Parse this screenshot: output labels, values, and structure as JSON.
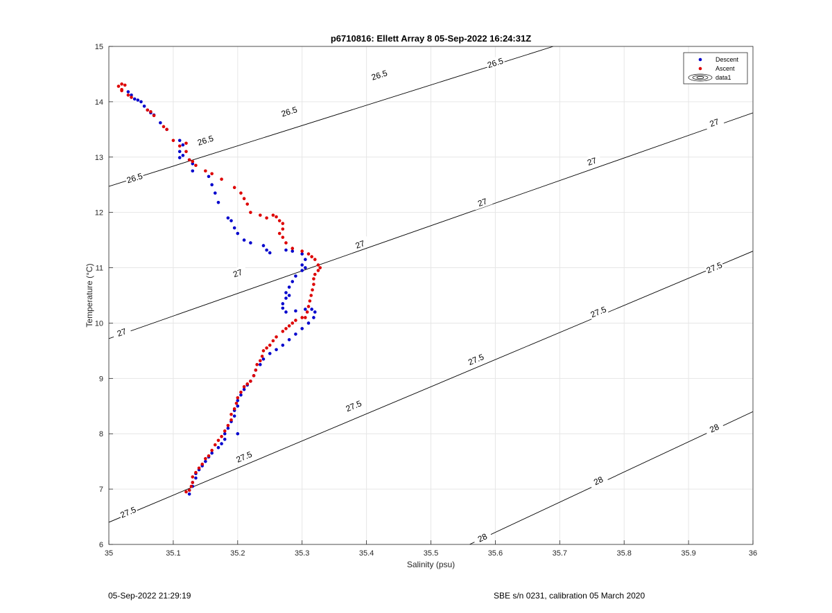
{
  "footer": {
    "left": "05-Sep-2022 21:29:19",
    "right": "SBE s/n 0231, calibration 05 March 2020"
  },
  "chart_data": {
    "type": "scatter",
    "title": "p6710816: Ellett Array 8 05-Sep-2022 16:24:31Z",
    "xlabel": "Salinity (psu)",
    "ylabel": "Temperature (°C)",
    "xlim": [
      35,
      36
    ],
    "ylim": [
      6,
      15
    ],
    "xticks": [
      "35",
      "35.1",
      "35.2",
      "35.3",
      "35.4",
      "35.5",
      "35.6",
      "35.7",
      "35.8",
      "35.9",
      "36"
    ],
    "yticks": [
      "6",
      "7",
      "8",
      "9",
      "10",
      "11",
      "12",
      "13",
      "14",
      "15"
    ],
    "grid": true,
    "legend": {
      "placement": "top-right",
      "entries": [
        {
          "name": "Descent",
          "color": "#0000cc",
          "marker": "dot"
        },
        {
          "name": "Ascent",
          "color": "#dd0000",
          "marker": "dot"
        },
        {
          "name": "data1",
          "color": "#000000",
          "marker": "contour"
        }
      ]
    },
    "contours": [
      {
        "level": "26.5",
        "line": [
          [
            35,
            12.47
          ],
          [
            35.69,
            15
          ]
        ],
        "labels": [
          [
            35.04,
            12.62
          ],
          [
            35.15,
            13.3
          ],
          [
            35.28,
            13.82
          ],
          [
            35.42,
            14.48
          ],
          [
            35.6,
            14.7
          ]
        ]
      },
      {
        "level": "27",
        "line": [
          [
            35,
            9.72
          ],
          [
            36,
            13.8
          ]
        ],
        "labels": [
          [
            35.02,
            9.83
          ],
          [
            35.2,
            10.9
          ],
          [
            35.39,
            11.42
          ],
          [
            35.58,
            12.18
          ],
          [
            35.75,
            12.92
          ],
          [
            35.94,
            13.62
          ]
        ]
      },
      {
        "level": "27.5",
        "line": [
          [
            35,
            6.4
          ],
          [
            36,
            11.3
          ]
        ],
        "labels": [
          [
            35.03,
            6.58
          ],
          [
            35.21,
            7.58
          ],
          [
            35.38,
            8.5
          ],
          [
            35.57,
            9.34
          ],
          [
            35.76,
            10.2
          ],
          [
            35.94,
            11.0
          ]
        ]
      },
      {
        "level": "28",
        "line": [
          [
            35.56,
            6
          ],
          [
            36,
            8.4
          ]
        ],
        "labels": [
          [
            35.58,
            6.12
          ],
          [
            35.76,
            7.15
          ],
          [
            35.94,
            8.1
          ]
        ]
      }
    ],
    "series": [
      {
        "name": "Descent",
        "color": "#0000cc",
        "points": [
          [
            35.03,
            14.18
          ],
          [
            35.035,
            14.12
          ],
          [
            35.04,
            14.05
          ],
          [
            35.045,
            14.03
          ],
          [
            35.05,
            14.0
          ],
          [
            35.055,
            13.92
          ],
          [
            35.06,
            13.85
          ],
          [
            35.065,
            13.8
          ],
          [
            35.07,
            13.76
          ],
          [
            35.08,
            13.62
          ],
          [
            35.09,
            13.5
          ],
          [
            35.11,
            13.3
          ],
          [
            35.115,
            13.22
          ],
          [
            35.11,
            13.1
          ],
          [
            35.115,
            13.03
          ],
          [
            35.11,
            12.99
          ],
          [
            35.125,
            12.95
          ],
          [
            35.13,
            12.88
          ],
          [
            35.13,
            12.75
          ],
          [
            35.155,
            12.65
          ],
          [
            35.16,
            12.5
          ],
          [
            35.165,
            12.35
          ],
          [
            35.17,
            12.18
          ],
          [
            35.185,
            11.9
          ],
          [
            35.19,
            11.85
          ],
          [
            35.195,
            11.72
          ],
          [
            35.2,
            11.62
          ],
          [
            35.21,
            11.5
          ],
          [
            35.22,
            11.45
          ],
          [
            35.24,
            11.4
          ],
          [
            35.245,
            11.32
          ],
          [
            35.25,
            11.27
          ],
          [
            35.275,
            11.32
          ],
          [
            35.285,
            11.3
          ],
          [
            35.3,
            11.25
          ],
          [
            35.305,
            11.15
          ],
          [
            35.3,
            11.05
          ],
          [
            35.305,
            11.0
          ],
          [
            35.3,
            10.95
          ],
          [
            35.29,
            10.85
          ],
          [
            35.285,
            10.75
          ],
          [
            35.28,
            10.65
          ],
          [
            35.275,
            10.55
          ],
          [
            35.28,
            10.5
          ],
          [
            35.275,
            10.45
          ],
          [
            35.27,
            10.35
          ],
          [
            35.27,
            10.27
          ],
          [
            35.275,
            10.2
          ],
          [
            35.29,
            10.22
          ],
          [
            35.305,
            10.25
          ],
          [
            35.315,
            10.25
          ],
          [
            35.32,
            10.2
          ],
          [
            35.318,
            10.1
          ],
          [
            35.31,
            10.0
          ],
          [
            35.3,
            9.9
          ],
          [
            35.29,
            9.8
          ],
          [
            35.28,
            9.7
          ],
          [
            35.27,
            9.6
          ],
          [
            35.26,
            9.52
          ],
          [
            35.25,
            9.45
          ],
          [
            35.24,
            9.35
          ],
          [
            35.235,
            9.25
          ],
          [
            35.228,
            9.15
          ],
          [
            35.225,
            9.05
          ],
          [
            35.22,
            8.95
          ],
          [
            35.215,
            8.88
          ],
          [
            35.21,
            8.8
          ],
          [
            35.205,
            8.7
          ],
          [
            35.2,
            8.6
          ],
          [
            35.2,
            8.5
          ],
          [
            35.195,
            8.42
          ],
          [
            35.195,
            8.32
          ],
          [
            35.19,
            8.22
          ],
          [
            35.2,
            8.0
          ],
          [
            35.185,
            8.1
          ],
          [
            35.18,
            8.0
          ],
          [
            35.18,
            7.9
          ],
          [
            35.175,
            7.82
          ],
          [
            35.17,
            7.75
          ],
          [
            35.16,
            7.65
          ],
          [
            35.155,
            7.58
          ],
          [
            35.15,
            7.5
          ],
          [
            35.145,
            7.42
          ],
          [
            35.14,
            7.35
          ],
          [
            35.135,
            7.28
          ],
          [
            35.135,
            7.2
          ],
          [
            35.13,
            7.12
          ],
          [
            35.13,
            7.05
          ],
          [
            35.125,
            6.98
          ],
          [
            35.125,
            6.91
          ]
        ]
      },
      {
        "name": "Ascent",
        "color": "#dd0000",
        "points": [
          [
            35.015,
            14.28
          ],
          [
            35.02,
            14.32
          ],
          [
            35.025,
            14.3
          ],
          [
            35.02,
            14.22
          ],
          [
            35.02,
            14.2
          ],
          [
            35.03,
            14.12
          ],
          [
            35.035,
            14.08
          ],
          [
            35.06,
            13.85
          ],
          [
            35.065,
            13.82
          ],
          [
            35.07,
            13.75
          ],
          [
            35.085,
            13.55
          ],
          [
            35.09,
            13.5
          ],
          [
            35.1,
            13.3
          ],
          [
            35.11,
            13.2
          ],
          [
            35.12,
            13.25
          ],
          [
            35.12,
            13.1
          ],
          [
            35.125,
            12.95
          ],
          [
            35.13,
            12.92
          ],
          [
            35.135,
            12.85
          ],
          [
            35.15,
            12.75
          ],
          [
            35.16,
            12.7
          ],
          [
            35.175,
            12.6
          ],
          [
            35.195,
            12.45
          ],
          [
            35.205,
            12.35
          ],
          [
            35.21,
            12.25
          ],
          [
            35.215,
            12.15
          ],
          [
            35.22,
            12.0
          ],
          [
            35.235,
            11.95
          ],
          [
            35.245,
            11.9
          ],
          [
            35.255,
            11.95
          ],
          [
            35.26,
            11.92
          ],
          [
            35.265,
            11.85
          ],
          [
            35.27,
            11.8
          ],
          [
            35.27,
            11.7
          ],
          [
            35.265,
            11.62
          ],
          [
            35.27,
            11.55
          ],
          [
            35.275,
            11.45
          ],
          [
            35.285,
            11.35
          ],
          [
            35.3,
            11.3
          ],
          [
            35.31,
            11.25
          ],
          [
            35.315,
            11.2
          ],
          [
            35.32,
            11.15
          ],
          [
            35.325,
            11.05
          ],
          [
            35.328,
            11.0
          ],
          [
            35.325,
            10.95
          ],
          [
            35.32,
            10.88
          ],
          [
            35.318,
            10.8
          ],
          [
            35.318,
            10.7
          ],
          [
            35.316,
            10.6
          ],
          [
            35.314,
            10.5
          ],
          [
            35.312,
            10.4
          ],
          [
            35.31,
            10.3
          ],
          [
            35.308,
            10.2
          ],
          [
            35.305,
            10.1
          ],
          [
            35.3,
            10.1
          ],
          [
            35.29,
            10.05
          ],
          [
            35.285,
            10.0
          ],
          [
            35.28,
            9.95
          ],
          [
            35.275,
            9.9
          ],
          [
            35.27,
            9.85
          ],
          [
            35.26,
            9.75
          ],
          [
            35.255,
            9.68
          ],
          [
            35.25,
            9.6
          ],
          [
            35.245,
            9.55
          ],
          [
            35.24,
            9.5
          ],
          [
            35.238,
            9.4
          ],
          [
            35.235,
            9.32
          ],
          [
            35.23,
            9.25
          ],
          [
            35.228,
            9.15
          ],
          [
            35.225,
            9.05
          ],
          [
            35.22,
            8.95
          ],
          [
            35.215,
            8.9
          ],
          [
            35.21,
            8.85
          ],
          [
            35.205,
            8.75
          ],
          [
            35.2,
            8.65
          ],
          [
            35.198,
            8.55
          ],
          [
            35.195,
            8.45
          ],
          [
            35.19,
            8.35
          ],
          [
            35.19,
            8.25
          ],
          [
            35.185,
            8.15
          ],
          [
            35.18,
            8.05
          ],
          [
            35.175,
            7.95
          ],
          [
            35.17,
            7.88
          ],
          [
            35.165,
            7.8
          ],
          [
            35.16,
            7.7
          ],
          [
            35.155,
            7.6
          ],
          [
            35.15,
            7.55
          ],
          [
            35.145,
            7.45
          ],
          [
            35.14,
            7.38
          ],
          [
            35.135,
            7.3
          ],
          [
            35.13,
            7.22
          ],
          [
            35.13,
            7.12
          ],
          [
            35.128,
            7.05
          ],
          [
            35.125,
            6.98
          ],
          [
            35.12,
            6.95
          ]
        ]
      }
    ]
  }
}
